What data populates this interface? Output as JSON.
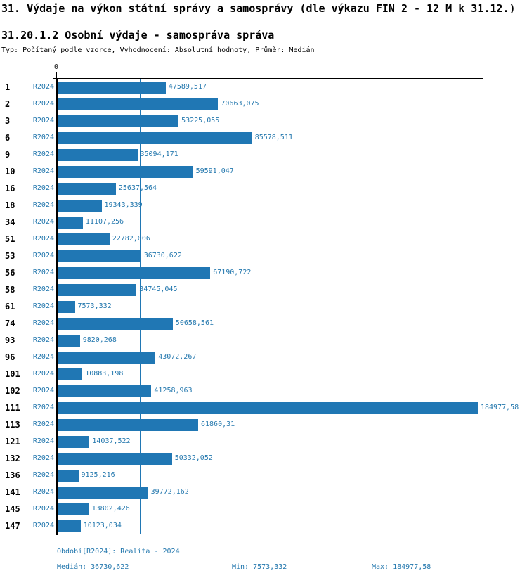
{
  "header": {
    "title": "31. Výdaje na výkon státní správy a samosprávy (dle výkazu FIN 2 - 12 M k 31.12.)",
    "subtitle": "31.20.1.2 Osobní výdaje - samospráva správa",
    "meta": "Typ: Počítaný podle vzorce, Vyhodnocení: Absolutní hodnoty, Průměr: Medián"
  },
  "chart_data": {
    "type": "bar",
    "orientation": "horizontal",
    "title": "31.20.1.2 Osobní výdaje - samospráva správa",
    "axis_zero_label": "0",
    "series_label": "R2024",
    "categories": [
      "1",
      "2",
      "3",
      "6",
      "9",
      "10",
      "16",
      "18",
      "34",
      "51",
      "53",
      "56",
      "58",
      "61",
      "74",
      "93",
      "96",
      "101",
      "102",
      "111",
      "113",
      "121",
      "132",
      "136",
      "141",
      "145",
      "147"
    ],
    "values": [
      47589.517,
      70663.075,
      53225.055,
      85578.511,
      35094.171,
      59591.047,
      25637.564,
      19343.339,
      11107.256,
      22782.006,
      36730.622,
      67190.722,
      34745.045,
      7573.332,
      50658.561,
      9820.268,
      43072.267,
      10883.198,
      41258.963,
      184977.58,
      61860.31,
      14037.522,
      50332.052,
      9125.216,
      39772.162,
      13802.426,
      10123.034
    ],
    "value_labels": [
      "47589,517",
      "70663,075",
      "53225,055",
      "85578,511",
      "35094,171",
      "59591,047",
      "25637,564",
      "19343,339",
      "11107,256",
      "22782,006",
      "36730,622",
      "67190,722",
      "34745,045",
      "7573,332",
      "50658,561",
      "9820,268",
      "43072,267",
      "10883,198",
      "41258,963",
      "184977,58",
      "61860,31",
      "14037,522",
      "50332,052",
      "9125,216",
      "39772,162",
      "13802,426",
      "10123,034"
    ],
    "xlim": [
      0,
      184977.58
    ],
    "median": 36730.622,
    "bar_color": "#2077b4",
    "median_line_color": "#2077b4",
    "grid": false,
    "legend_position": "none"
  },
  "footer": {
    "period": "Období[R2024]: Realita - 2024",
    "median_label": "Medián: 36730,622",
    "min_label": "Min: 7573,332",
    "max_label": "Max: 184977,58"
  }
}
